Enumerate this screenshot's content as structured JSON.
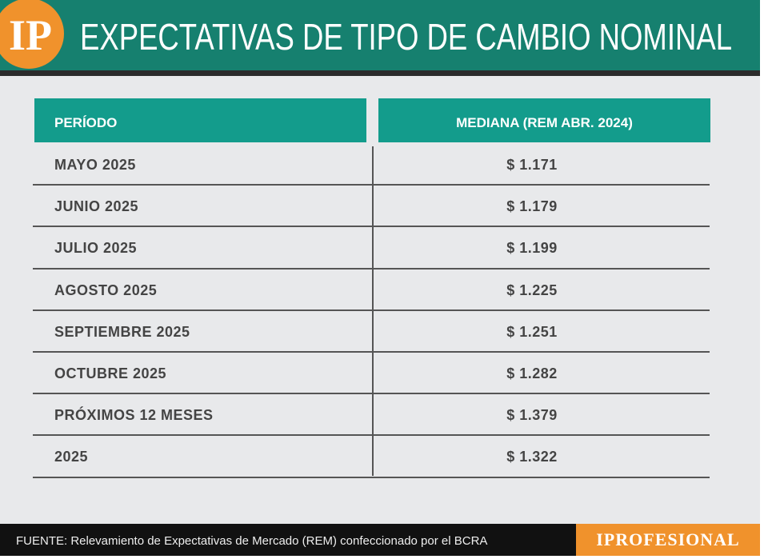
{
  "header": {
    "logo": "IP",
    "title": "EXPECTATIVAS DE TIPO DE CAMBIO NOMINAL"
  },
  "table": {
    "columns": [
      "PERÍODO",
      "MEDIANA (REM ABR. 2024)"
    ],
    "rows": [
      [
        "MAYO 2025",
        "$ 1.171"
      ],
      [
        "JUNIO 2025",
        "$ 1.179"
      ],
      [
        "JULIO 2025",
        "$ 1.199"
      ],
      [
        "AGOSTO 2025",
        "$ 1.225"
      ],
      [
        "SEPTIEMBRE 2025",
        "$ 1.251"
      ],
      [
        "OCTUBRE 2025",
        "$ 1.282"
      ],
      [
        "PRÓXIMOS 12 MESES",
        "$ 1.379"
      ],
      [
        "2025",
        "$ 1.322"
      ]
    ]
  },
  "footer": {
    "source": "FUENTE: Relevamiento de Expectativas de Mercado (REM) confeccionado por el BCRA",
    "brand": "IPROFESIONAL"
  }
}
